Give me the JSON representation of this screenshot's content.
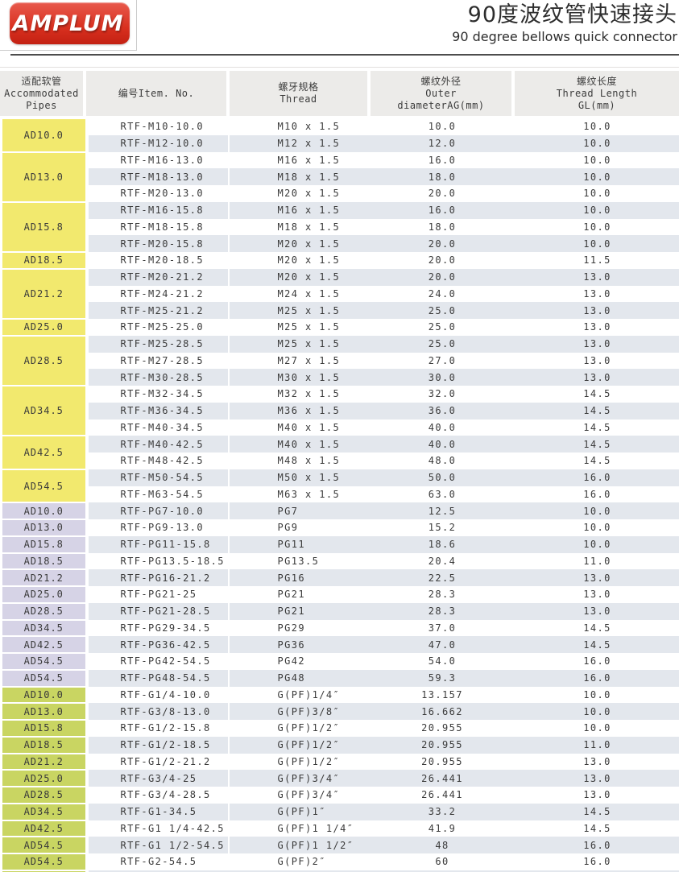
{
  "logo": {
    "text": "AMPLUM"
  },
  "title": {
    "zh": "90度波纹管快速接头",
    "en": "90 degree bellows quick connector"
  },
  "colors": {
    "logo_red": "#d9301f",
    "logo_red_light": "#e85a4d",
    "logo_red_dark": "#c32113",
    "header_bg": "#ecebe9",
    "stripe_row": "#e3e7ed",
    "m_section_yellow": "#f2e96e",
    "pg_section_lavender": "#d6d3e6",
    "g_section_green": "#c9d562"
  },
  "table": {
    "headers": [
      {
        "id": "pipes",
        "lines": [
          "适配软管",
          "Accommodated",
          "Pipes"
        ]
      },
      {
        "id": "item",
        "lines": [
          "编号Item. No."
        ]
      },
      {
        "id": "thread",
        "lines": [
          "螺牙规格",
          "Thread"
        ]
      },
      {
        "id": "outer",
        "lines": [
          "螺纹外径",
          "Outer",
          "diameterAG(mm)"
        ]
      },
      {
        "id": "length",
        "lines": [
          "螺纹长度",
          "Thread Length",
          "GL(mm)"
        ]
      }
    ],
    "rows": [
      {
        "pipe": "AD10.0",
        "span": 2,
        "section": "m",
        "item": "RTF-M10-10.0",
        "thread": "M10 x 1.5",
        "outer": "10.0",
        "length": "10.0"
      },
      {
        "section": "m",
        "item": "RTF-M12-10.0",
        "thread": "M12 x 1.5",
        "outer": "12.0",
        "length": "10.0"
      },
      {
        "pipe": "AD13.0",
        "span": 3,
        "section": "m",
        "item": "RTF-M16-13.0",
        "thread": "M16 x 1.5",
        "outer": "16.0",
        "length": "10.0"
      },
      {
        "section": "m",
        "item": "RTF-M18-13.0",
        "thread": "M18 x 1.5",
        "outer": "18.0",
        "length": "10.0"
      },
      {
        "section": "m",
        "item": "RTF-M20-13.0",
        "thread": "M20 x 1.5",
        "outer": "20.0",
        "length": "10.0"
      },
      {
        "pipe": "AD15.8",
        "span": 3,
        "section": "m",
        "item": "RTF-M16-15.8",
        "thread": "M16 x 1.5",
        "outer": "16.0",
        "length": "10.0"
      },
      {
        "section": "m",
        "item": "RTF-M18-15.8",
        "thread": "M18 x 1.5",
        "outer": "18.0",
        "length": "10.0"
      },
      {
        "section": "m",
        "item": "RTF-M20-15.8",
        "thread": "M20 x 1.5",
        "outer": "20.0",
        "length": "10.0"
      },
      {
        "pipe": "AD18.5",
        "span": 1,
        "section": "m",
        "item": "RTF-M20-18.5",
        "thread": "M20 x 1.5",
        "outer": "20.0",
        "length": "11.5"
      },
      {
        "pipe": "AD21.2",
        "span": 3,
        "section": "m",
        "item": "RTF-M20-21.2",
        "thread": "M20 x 1.5",
        "outer": "20.0",
        "length": "13.0"
      },
      {
        "section": "m",
        "item": "RTF-M24-21.2",
        "thread": "M24 x 1.5",
        "outer": "24.0",
        "length": "13.0"
      },
      {
        "section": "m",
        "item": "RTF-M25-21.2",
        "thread": "M25 x 1.5",
        "outer": "25.0",
        "length": "13.0"
      },
      {
        "pipe": "AD25.0",
        "span": 1,
        "section": "m",
        "item": "RTF-M25-25.0",
        "thread": "M25 x 1.5",
        "outer": "25.0",
        "length": "13.0"
      },
      {
        "pipe": "AD28.5",
        "span": 3,
        "section": "m",
        "item": "RTF-M25-28.5",
        "thread": "M25 x 1.5",
        "outer": "25.0",
        "length": "13.0"
      },
      {
        "section": "m",
        "item": "RTF-M27-28.5",
        "thread": "M27 x 1.5",
        "outer": "27.0",
        "length": "13.0"
      },
      {
        "section": "m",
        "item": "RTF-M30-28.5",
        "thread": "M30 x 1.5",
        "outer": "30.0",
        "length": "13.0"
      },
      {
        "pipe": "AD34.5",
        "span": 3,
        "section": "m",
        "item": "RTF-M32-34.5",
        "thread": "M32 x 1.5",
        "outer": "32.0",
        "length": "14.5"
      },
      {
        "section": "m",
        "item": "RTF-M36-34.5",
        "thread": "M36 x 1.5",
        "outer": "36.0",
        "length": "14.5"
      },
      {
        "section": "m",
        "item": "RTF-M40-34.5",
        "thread": "M40 x 1.5",
        "outer": "40.0",
        "length": "14.5"
      },
      {
        "pipe": "AD42.5",
        "span": 2,
        "section": "m",
        "item": "RTF-M40-42.5",
        "thread": "M40 x 1.5",
        "outer": "40.0",
        "length": "14.5"
      },
      {
        "section": "m",
        "item": "RTF-M48-42.5",
        "thread": "M48 x 1.5",
        "outer": "48.0",
        "length": "14.5"
      },
      {
        "pipe": "AD54.5",
        "span": 2,
        "section": "m",
        "item": "RTF-M50-54.5",
        "thread": "M50 x 1.5",
        "outer": "50.0",
        "length": "16.0"
      },
      {
        "section": "m",
        "item": "RTF-M63-54.5",
        "thread": "M63 x 1.5",
        "outer": "63.0",
        "length": "16.0"
      },
      {
        "pipe": "AD10.0",
        "span": 1,
        "section": "pg",
        "item": "RTF-PG7-10.0",
        "thread": "PG7",
        "outer": "12.5",
        "length": "10.0"
      },
      {
        "pipe": "AD13.0",
        "span": 1,
        "section": "pg",
        "item": "RTF-PG9-13.0",
        "thread": "PG9",
        "outer": "15.2",
        "length": "10.0"
      },
      {
        "pipe": "AD15.8",
        "span": 1,
        "section": "pg",
        "item": "RTF-PG11-15.8",
        "thread": "PG11",
        "outer": "18.6",
        "length": "10.0"
      },
      {
        "pipe": "AD18.5",
        "span": 1,
        "section": "pg",
        "item": "RTF-PG13.5-18.5",
        "thread": "PG13.5",
        "outer": "20.4",
        "length": "11.0"
      },
      {
        "pipe": "AD21.2",
        "span": 1,
        "section": "pg",
        "item": "RTF-PG16-21.2",
        "thread": "PG16",
        "outer": "22.5",
        "length": "13.0"
      },
      {
        "pipe": "AD25.0",
        "span": 1,
        "section": "pg",
        "item": "RTF-PG21-25",
        "thread": "PG21",
        "outer": "28.3",
        "length": "13.0"
      },
      {
        "pipe": "AD28.5",
        "span": 1,
        "section": "pg",
        "item": "RTF-PG21-28.5",
        "thread": "PG21",
        "outer": "28.3",
        "length": "13.0"
      },
      {
        "pipe": "AD34.5",
        "span": 1,
        "section": "pg",
        "item": "RTF-PG29-34.5",
        "thread": "PG29",
        "outer": "37.0",
        "length": "14.5"
      },
      {
        "pipe": "AD42.5",
        "span": 1,
        "section": "pg",
        "item": "RTF-PG36-42.5",
        "thread": "PG36",
        "outer": "47.0",
        "length": "14.5"
      },
      {
        "pipe": "AD54.5",
        "span": 1,
        "section": "pg",
        "item": "RTF-PG42-54.5",
        "thread": "PG42",
        "outer": "54.0",
        "length": "16.0"
      },
      {
        "pipe": "AD54.5",
        "span": 1,
        "section": "pg",
        "item": "RTF-PG48-54.5",
        "thread": "PG48",
        "outer": "59.3",
        "length": "16.0"
      },
      {
        "pipe": "AD10.0",
        "span": 1,
        "section": "g",
        "item": "RTF-G1/4-10.0",
        "thread": "G(PF)1/4″",
        "outer": "13.157",
        "length": "10.0"
      },
      {
        "pipe": "AD13.0",
        "span": 1,
        "section": "g",
        "item": "RTF-G3/8-13.0",
        "thread": "G(PF)3/8″",
        "outer": "16.662",
        "length": "10.0"
      },
      {
        "pipe": "AD15.8",
        "span": 1,
        "section": "g",
        "item": "RTF-G1/2-15.8",
        "thread": "G(PF)1/2″",
        "outer": "20.955",
        "length": "10.0"
      },
      {
        "pipe": "AD18.5",
        "span": 1,
        "section": "g",
        "item": "RTF-G1/2-18.5",
        "thread": "G(PF)1/2″",
        "outer": "20.955",
        "length": "11.0"
      },
      {
        "pipe": "AD21.2",
        "span": 1,
        "section": "g",
        "item": "RTF-G1/2-21.2",
        "thread": "G(PF)1/2″",
        "outer": "20.955",
        "length": "13.0"
      },
      {
        "pipe": "AD25.0",
        "span": 1,
        "section": "g",
        "item": "RTF-G3/4-25",
        "thread": "G(PF)3/4″",
        "outer": "26.441",
        "length": "13.0"
      },
      {
        "pipe": "AD28.5",
        "span": 1,
        "section": "g",
        "item": "RTF-G3/4-28.5",
        "thread": "G(PF)3/4″",
        "outer": "26.441",
        "length": "13.0"
      },
      {
        "pipe": "AD34.5",
        "span": 1,
        "section": "g",
        "item": "RTF-G1-34.5",
        "thread": "G(PF)1″",
        "outer": "33.2",
        "length": "14.5"
      },
      {
        "pipe": "AD42.5",
        "span": 1,
        "section": "g",
        "item": "RTF-G1 1/4-42.5",
        "thread": "G(PF)1 1/4″",
        "outer": "41.9",
        "length": "14.5"
      },
      {
        "pipe": "AD54.5",
        "span": 1,
        "section": "g",
        "item": "RTF-G1 1/2-54.5",
        "thread": "G(PF)1 1/2″",
        "outer": "48",
        "length": "16.0"
      },
      {
        "pipe": "AD54.5",
        "span": 1,
        "section": "g",
        "item": "RTF-G2-54.5",
        "thread": "G(PF)2″",
        "outer": "60",
        "length": "16.0"
      },
      {
        "pipe": "",
        "span": 1,
        "section": "g",
        "item": "",
        "thread": "",
        "outer": "",
        "length": ""
      }
    ]
  }
}
